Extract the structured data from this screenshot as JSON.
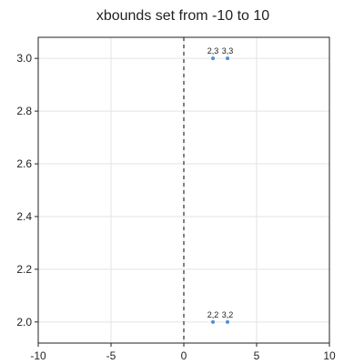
{
  "chart_data": {
    "type": "scatter",
    "title": "xbounds set from -10 to 10",
    "xlabel": "",
    "ylabel": "",
    "xlim": [
      -10,
      10
    ],
    "ylim": [
      1.92,
      3.08
    ],
    "xticks": [
      -10,
      -5,
      0,
      5,
      10
    ],
    "xtick_labels": [
      "-10",
      "-5",
      "0",
      "5",
      "10"
    ],
    "yticks": [
      2.0,
      2.2,
      2.4,
      2.6,
      2.8,
      3.0
    ],
    "ytick_labels": [
      "2.0",
      "2.2",
      "2.4",
      "2.6",
      "2.8",
      "3.0"
    ],
    "grid": true,
    "reference_line": {
      "x": 0,
      "style": "dashed",
      "color": "#555555"
    },
    "series": [
      {
        "color": "#4a90d9",
        "points": [
          {
            "x": 2,
            "y": 3,
            "label": "2,3"
          },
          {
            "x": 3,
            "y": 3,
            "label": "3,3"
          },
          {
            "x": 2,
            "y": 2,
            "label": "2,2"
          },
          {
            "x": 3,
            "y": 2,
            "label": "3,2"
          }
        ]
      }
    ]
  }
}
